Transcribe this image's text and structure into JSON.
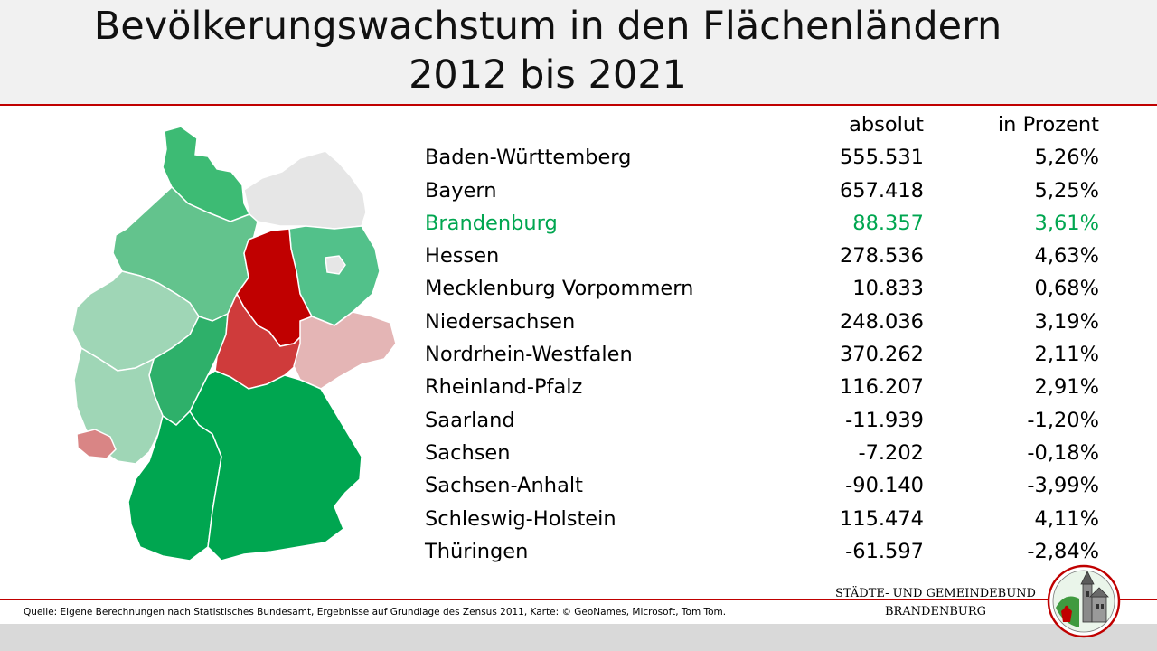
{
  "title": {
    "line1": "Bevölkerungswachstum in den Flächenländern",
    "line2": "2012 bis 2021"
  },
  "table": {
    "header_abs": "absolut",
    "header_pct": "in Prozent",
    "rows": [
      {
        "name": "Baden-Württemberg",
        "abs": "555.531",
        "pct": "5,26%"
      },
      {
        "name": "Bayern",
        "abs": "657.418",
        "pct": "5,25%"
      },
      {
        "name": "Brandenburg",
        "abs": "88.357",
        "pct": "3,61%"
      },
      {
        "name": "Hessen",
        "abs": "278.536",
        "pct": "4,63%"
      },
      {
        "name": "Mecklenburg Vorpommern",
        "abs": "10.833",
        "pct": "0,68%"
      },
      {
        "name": "Niedersachsen",
        "abs": "248.036",
        "pct": "3,19%"
      },
      {
        "name": "Nordrhein-Westfalen",
        "abs": "370.262",
        "pct": "2,11%"
      },
      {
        "name": "Rheinland-Pfalz",
        "abs": "116.207",
        "pct": "2,91%"
      },
      {
        "name": "Saarland",
        "abs": "-11.939",
        "pct": "-1,20%"
      },
      {
        "name": "Sachsen",
        "abs": "-7.202",
        "pct": "-0,18%"
      },
      {
        "name": "Sachsen-Anhalt",
        "abs": "-90.140",
        "pct": "-3,99%"
      },
      {
        "name": "Schleswig-Holstein",
        "abs": "115.474",
        "pct": "4,11%"
      },
      {
        "name": "Thüringen",
        "abs": "-61.597",
        "pct": "-2,84%"
      }
    ],
    "highlight_row": "Brandenburg",
    "highlight_color": "#00a650"
  },
  "map_colors": {
    "strong_green": "#00a650",
    "green": "#3dbb74",
    "mid_green": "#63c38d",
    "light_green": "#9fd6b6",
    "grey": "#e6e6e6",
    "dark_red": "#c00000",
    "red": "#cf3b3b",
    "light_red": "#e4b5b5",
    "saar_red": "#d98585"
  },
  "footer": {
    "source": "Quelle: Eigene Berechnungen  nach Statistisches Bundesamt, Ergebnisse auf Grundlage des Zensus 2011, Karte: © GeoNames,  Microsoft, Tom Tom.",
    "org_line1": "STÄDTE-  UND GEMEINDEBUND",
    "org_line2": "BRANDENBURG"
  },
  "accent_red": "#c00000"
}
